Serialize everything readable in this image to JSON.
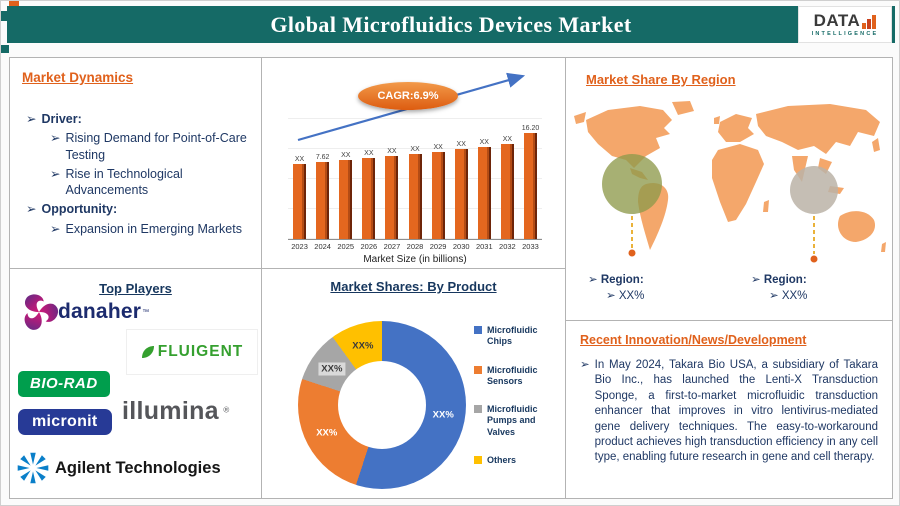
{
  "header": {
    "title": "Global Microfluidics Devices Market",
    "logo_brand": "DATA",
    "logo_sub": "INTELLIGENCE"
  },
  "market_dynamics": {
    "heading": "Market Dynamics",
    "items": [
      {
        "text": "Driver:",
        "level": 1,
        "bold": true
      },
      {
        "text": "Rising Demand for Point-of-Care Testing",
        "level": 2,
        "bold": false
      },
      {
        "text": "Rise in Technological Advancements",
        "level": 2,
        "bold": false
      },
      {
        "text": "Opportunity:",
        "level": 1,
        "bold": true
      },
      {
        "text": "Expansion in Emerging Markets",
        "level": 2,
        "bold": false
      }
    ]
  },
  "top_players": {
    "heading": "Top Players",
    "logos": {
      "danaher": "danaher",
      "danaher_tm": "™",
      "fluigent": "FLUIGENT",
      "biorad": "BIO-RAD",
      "micronit": "micronit",
      "illumina": "illumina",
      "illumina_r": "®",
      "agilent": "Agilent Technologies"
    }
  },
  "region_share": {
    "heading": "Market Share By Region",
    "regions": [
      {
        "label": "Region:",
        "value": "XX%"
      },
      {
        "label": "Region:",
        "value": "XX%"
      }
    ]
  },
  "news": {
    "heading": "Recent Innovation/News/Development",
    "body": "In May 2024, Takara Bio USA, a subsidiary of Takara Bio Inc., has launched the Lenti-X Transduction Sponge, a first-to-market microfluidic transduction enhancer that improves in vitro lentivirus-mediated gene delivery techniques. The easy-to-workaround product achieves high transduction efficiency in any cell type, enabling future research in gene and cell therapy."
  },
  "chart_data": [
    {
      "id": "market-size-by-year",
      "type": "bar",
      "annotation": "CAGR:6.9%",
      "categories": [
        "2023",
        "2024",
        "2025",
        "2026",
        "2027",
        "2028",
        "2029",
        "2030",
        "2031",
        "2032",
        "2033"
      ],
      "values": [
        7.1,
        7.62,
        8.15,
        8.71,
        9.31,
        9.95,
        10.64,
        11.37,
        12.16,
        13.0,
        16.2
      ],
      "bar_labels": [
        "XX",
        "7.62",
        "XX",
        "XX",
        "XX",
        "XX",
        "XX",
        "XX",
        "XX",
        "XX",
        "16.20"
      ],
      "xlabel": "Market Size (in billions)",
      "ylim": [
        0,
        18
      ],
      "grid": true,
      "bar_color": "#E4671F",
      "bar_shadow_color": "#6E2509"
    },
    {
      "id": "market-shares-by-product",
      "type": "pie",
      "title": "Market Shares: By Product",
      "legend_position": "right",
      "slices": [
        {
          "label": "Microfluidic Chips",
          "value": 55,
          "display": "XX%",
          "color": "#4472c4",
          "label_fg": "#ffffff",
          "label_bg": ""
        },
        {
          "label": "Microfluidic Sensors",
          "value": 25,
          "display": "XX%",
          "color": "#ed7d31",
          "label_fg": "#ffffff",
          "label_bg": ""
        },
        {
          "label": "Microfluidic Pumps and Valves",
          "value": 10,
          "display": "XX%",
          "color": "#a6a6a6",
          "label_fg": "#3b3b3b",
          "label_bg": "#d9d9d9"
        },
        {
          "label": "Others",
          "value": 10,
          "display": "XX%",
          "color": "#ffc000",
          "label_fg": "#3b3b3b",
          "label_bg": "#ffc000"
        }
      ]
    }
  ],
  "colors": {
    "header_teal": "#156A66",
    "accent_orange": "#E0611C",
    "navy_text": "#1F3864",
    "map_orange": "#F4A76B",
    "trend_arrow_blue": "#4472C4",
    "highlight_olive": "#8E9A4B",
    "highlight_gray": "#BBB3A7"
  }
}
